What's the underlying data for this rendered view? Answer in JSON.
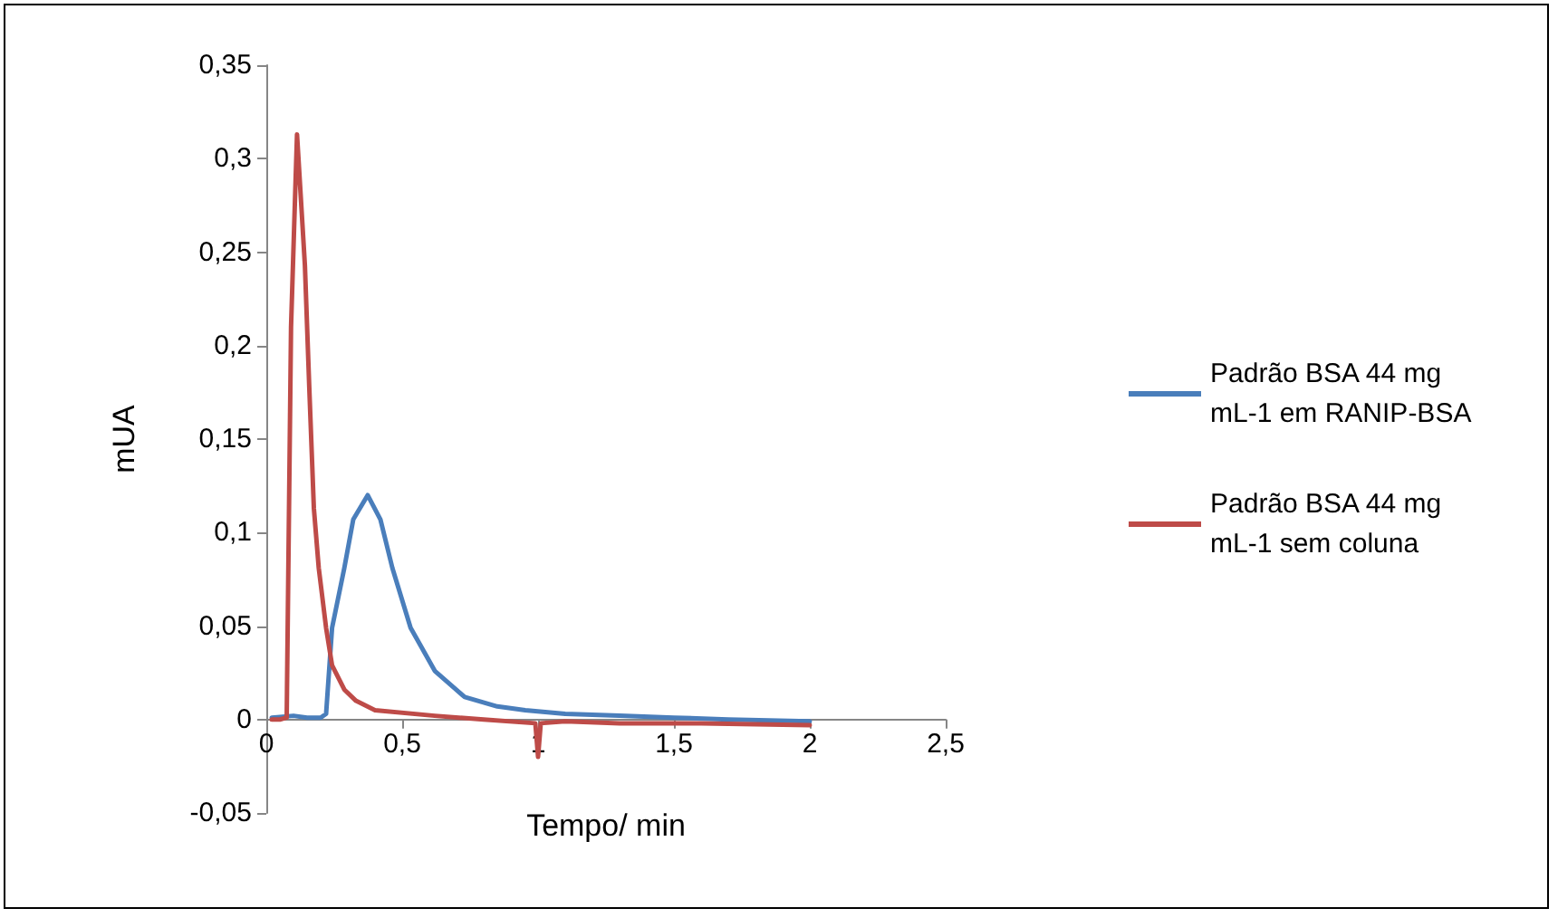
{
  "chart_data": {
    "type": "line",
    "xlabel": "Tempo/ min",
    "ylabel": "mUA",
    "xlim": [
      0,
      2.5
    ],
    "xticks": [
      0,
      {
        "value": 0.5,
        "label": "0,5"
      },
      1,
      {
        "value": 1.5,
        "label": "1,5"
      },
      2,
      {
        "value": 2.5,
        "label": "2,5"
      }
    ],
    "ylim": [
      -0.05,
      0.35
    ],
    "yticks": [
      {
        "value": -0.05,
        "label": "-0,05"
      },
      0,
      {
        "value": 0.05,
        "label": "0,05"
      },
      {
        "value": 0.1,
        "label": "0,1"
      },
      {
        "value": 0.15,
        "label": "0,15"
      },
      {
        "value": 0.2,
        "label": "0,2"
      },
      {
        "value": 0.25,
        "label": "0,25"
      },
      {
        "value": 0.3,
        "label": "0,3"
      },
      {
        "value": 0.35,
        "label": "0,35"
      }
    ],
    "legend": "right",
    "marker": "none",
    "line_style": "solid",
    "series": [
      {
        "name": "Padrão BSA 44 mg mL-1 em RANIP-BSA",
        "color": "#4a7ebb",
        "x": [
          0.02,
          0.1,
          0.15,
          0.2,
          0.22,
          0.242,
          0.287,
          0.32,
          0.373,
          0.42,
          0.464,
          0.531,
          0.62,
          0.73,
          0.85,
          0.953,
          1.1,
          1.3,
          1.5,
          1.7,
          2.0
        ],
        "values": [
          0.001,
          0.002,
          0.001,
          0.001,
          0.003,
          0.049,
          0.081,
          0.107,
          0.12,
          0.107,
          0.081,
          0.049,
          0.026,
          0.012,
          0.007,
          0.005,
          0.003,
          0.002,
          0.001,
          0.0,
          -0.001
        ]
      },
      {
        "name": "Padrão BSA 44 mg mL-1 sem coluna",
        "color": "#be4b48",
        "x": [
          0.02,
          0.05,
          0.075,
          0.091,
          0.113,
          0.142,
          0.158,
          0.175,
          0.193,
          0.22,
          0.242,
          0.287,
          0.33,
          0.4,
          0.62,
          0.8,
          0.99,
          1.0,
          1.01,
          1.1,
          1.3,
          1.6,
          2.0
        ],
        "values": [
          0.0,
          0.0,
          0.001,
          0.21,
          0.313,
          0.243,
          0.178,
          0.113,
          0.081,
          0.049,
          0.029,
          0.016,
          0.01,
          0.005,
          0.002,
          0.0,
          -0.002,
          -0.02,
          -0.002,
          -0.001,
          -0.002,
          -0.002,
          -0.003
        ]
      }
    ]
  }
}
